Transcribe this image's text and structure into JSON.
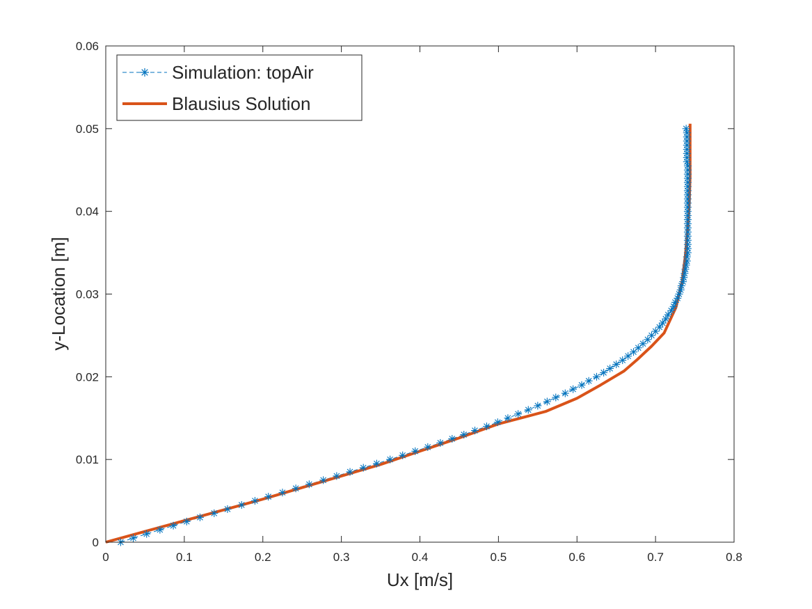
{
  "chart_data": {
    "type": "line",
    "xlabel": "Ux [m/s]",
    "ylabel": "y-Location [m]",
    "xlim": [
      0,
      0.8
    ],
    "ylim": [
      0,
      0.06
    ],
    "x_ticks": [
      "0",
      "0.1",
      "0.2",
      "0.3",
      "0.4",
      "0.5",
      "0.6",
      "0.7",
      "0.8"
    ],
    "y_ticks": [
      "0",
      "0.01",
      "0.02",
      "0.03",
      "0.04",
      "0.05",
      "0.06"
    ],
    "x_tick_values": [
      0,
      0.1,
      0.2,
      0.3,
      0.4,
      0.5,
      0.6,
      0.7,
      0.8
    ],
    "y_tick_values": [
      0,
      0.01,
      0.02,
      0.03,
      0.04,
      0.05,
      0.06
    ],
    "grid": false,
    "box": true,
    "legend_position": "top-left",
    "series": [
      {
        "name": "Simulation: topAir",
        "color": "#0072BD",
        "line_style": "dashed",
        "marker": "asterisk",
        "x": [
          0.019,
          0.035,
          0.052,
          0.069,
          0.086,
          0.103,
          0.12,
          0.138,
          0.155,
          0.173,
          0.19,
          0.207,
          0.225,
          0.242,
          0.259,
          0.277,
          0.294,
          0.311,
          0.328,
          0.345,
          0.362,
          0.378,
          0.394,
          0.41,
          0.426,
          0.441,
          0.456,
          0.47,
          0.485,
          0.499,
          0.512,
          0.525,
          0.538,
          0.55,
          0.562,
          0.573,
          0.585,
          0.595,
          0.606,
          0.615,
          0.625,
          0.634,
          0.642,
          0.65,
          0.658,
          0.665,
          0.672,
          0.678,
          0.684,
          0.69,
          0.695,
          0.7,
          0.705,
          0.709,
          0.713,
          0.716,
          0.72,
          0.723,
          0.725,
          0.728,
          0.73,
          0.732,
          0.733,
          0.735,
          0.736,
          0.737,
          0.738,
          0.739,
          0.74,
          0.74,
          0.741,
          0.741,
          0.741,
          0.741,
          0.741,
          0.741,
          0.741,
          0.741,
          0.741,
          0.741,
          0.741,
          0.741,
          0.741,
          0.741,
          0.741,
          0.741,
          0.741,
          0.741,
          0.741,
          0.741,
          0.741,
          0.741,
          0.74,
          0.74,
          0.74,
          0.74,
          0.74,
          0.74,
          0.74,
          0.74,
          0.739
        ],
        "y": [
          0,
          0.0005,
          0.001,
          0.0015,
          0.002,
          0.0025,
          0.003,
          0.0035,
          0.004,
          0.0045,
          0.005,
          0.0055,
          0.006,
          0.0065,
          0.007,
          0.0075,
          0.008,
          0.0085,
          0.009,
          0.0095,
          0.01,
          0.0105,
          0.011,
          0.0115,
          0.012,
          0.0125,
          0.013,
          0.0135,
          0.014,
          0.0145,
          0.015,
          0.0155,
          0.016,
          0.0165,
          0.017,
          0.0175,
          0.018,
          0.0185,
          0.019,
          0.0195,
          0.02,
          0.0205,
          0.021,
          0.0215,
          0.022,
          0.0225,
          0.023,
          0.0235,
          0.024,
          0.0245,
          0.025,
          0.0255,
          0.026,
          0.0265,
          0.027,
          0.0275,
          0.028,
          0.0285,
          0.029,
          0.0295,
          0.03,
          0.0305,
          0.031,
          0.0315,
          0.032,
          0.0325,
          0.033,
          0.0335,
          0.034,
          0.0345,
          0.035,
          0.0355,
          0.036,
          0.0365,
          0.037,
          0.0375,
          0.038,
          0.0385,
          0.039,
          0.0395,
          0.04,
          0.0405,
          0.041,
          0.0415,
          0.042,
          0.0425,
          0.043,
          0.0435,
          0.044,
          0.0445,
          0.045,
          0.0455,
          0.046,
          0.0465,
          0.047,
          0.0475,
          0.048,
          0.0485,
          0.049,
          0.0495,
          0.05
        ]
      },
      {
        "name": "Blausius Solution",
        "color": "#D95319",
        "line_style": "solid",
        "marker": "none",
        "x": [
          0,
          0.05,
          0.1,
          0.15,
          0.2,
          0.25,
          0.3,
          0.35,
          0.4,
          0.45,
          0.5,
          0.56,
          0.6,
          0.63,
          0.66,
          0.677,
          0.695,
          0.711,
          0.726,
          0.734,
          0.738,
          0.741,
          0.743,
          0.744,
          0.744,
          0.744,
          0.744
        ],
        "y": [
          0,
          0.0013,
          0.0026,
          0.0039,
          0.0052,
          0.0066,
          0.008,
          0.0094,
          0.011,
          0.0126,
          0.0143,
          0.0158,
          0.0174,
          0.019,
          0.0207,
          0.0221,
          0.0237,
          0.0253,
          0.0284,
          0.0316,
          0.0347,
          0.0379,
          0.0411,
          0.0442,
          0.0474,
          0.049,
          0.0506
        ]
      }
    ]
  }
}
